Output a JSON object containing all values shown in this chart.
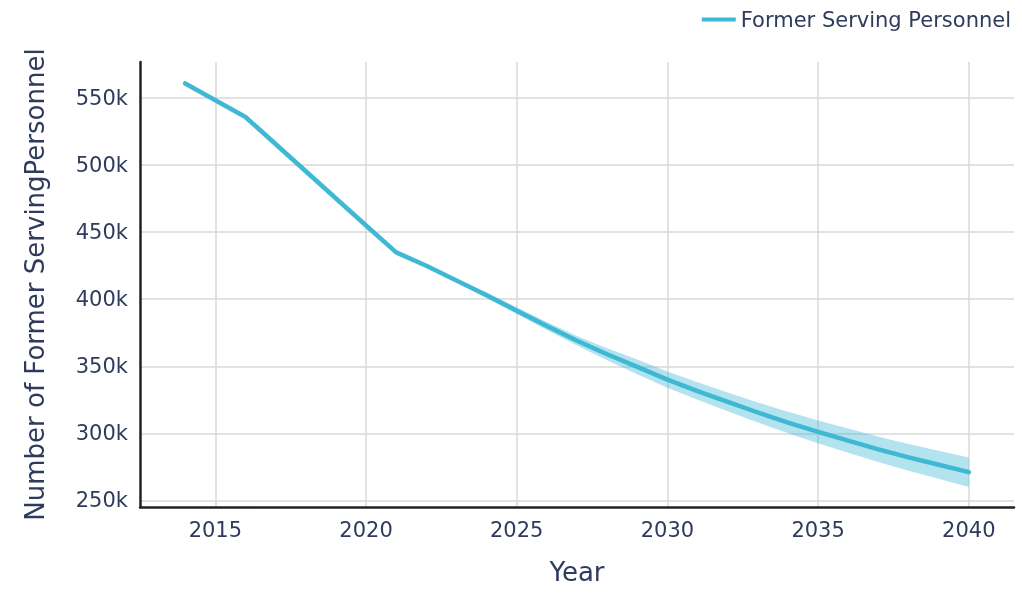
{
  "chart_data": {
    "type": "line",
    "xlabel": "Year",
    "ylabel": "Number of Former ServingPersonnel",
    "x": [
      2014,
      2016,
      2020,
      2021,
      2022,
      2023,
      2024,
      2025,
      2026,
      2027,
      2028,
      2029,
      2030,
      2031,
      2032,
      2033,
      2034,
      2035,
      2036,
      2037,
      2038,
      2039,
      2040
    ],
    "series": [
      {
        "name": "Former Serving Personnel",
        "color": "#3fb8d4",
        "values": [
          561000,
          536000,
          455000,
          435000,
          425000,
          414000,
          403000,
          391500,
          380000,
          369000,
          359000,
          349500,
          340000,
          331500,
          323500,
          315500,
          308000,
          301000,
          294500,
          288000,
          282000,
          276500,
          271000
        ],
        "lower": [
          null,
          null,
          null,
          435000,
          425000,
          413000,
          401000,
          389000,
          377000,
          365500,
          354500,
          344000,
          334000,
          325000,
          316500,
          308000,
          300000,
          292500,
          285500,
          278500,
          272000,
          266000,
          260000
        ],
        "upper": [
          null,
          null,
          null,
          435000,
          425000,
          415000,
          405000,
          394000,
          383000,
          372500,
          363500,
          355000,
          346000,
          338000,
          330500,
          323000,
          316000,
          309500,
          303500,
          297500,
          292000,
          287000,
          282000
        ]
      }
    ],
    "xlim": [
      2012.5,
      2041.5
    ],
    "xticks": [
      2015,
      2020,
      2025,
      2030,
      2035,
      2040
    ],
    "ylim": [
      245000,
      577000
    ],
    "yticks": [
      {
        "value": 250000,
        "label": "250k"
      },
      {
        "value": 300000,
        "label": "300k"
      },
      {
        "value": 350000,
        "label": "350k"
      },
      {
        "value": 400000,
        "label": "400k"
      },
      {
        "value": 450000,
        "label": "450k"
      },
      {
        "value": 500000,
        "label": "500k"
      },
      {
        "value": 550000,
        "label": "550k"
      }
    ],
    "grid": true,
    "legend": "top right",
    "marker": "none",
    "line_style": "solid"
  }
}
